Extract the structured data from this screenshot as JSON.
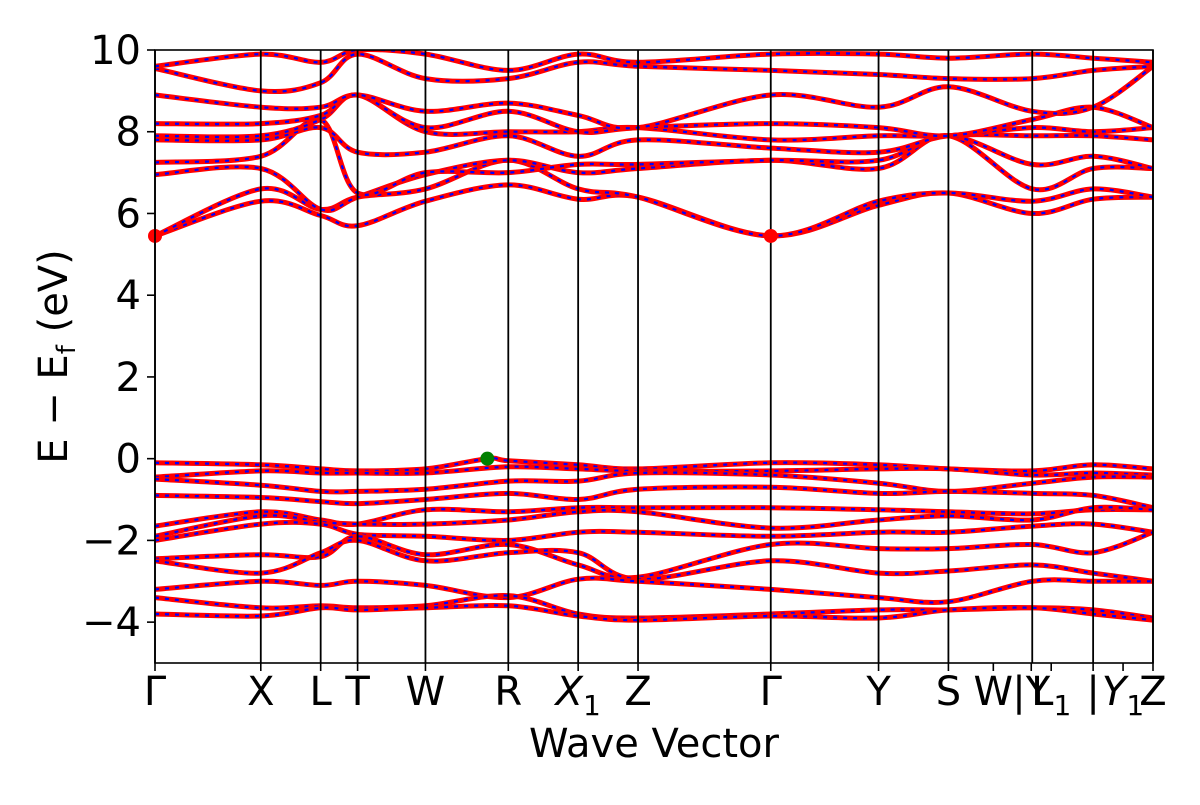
{
  "chart_data": {
    "type": "line",
    "title": "",
    "xlabel": "Wave Vector",
    "ylabel": "E − E_f (eV)",
    "ylabel_main": "E  −  E",
    "ylabel_sub": "f",
    "ylabel_tail": " (eV)",
    "ylim": [
      -5,
      10
    ],
    "yticks": [
      -4,
      -2,
      0,
      2,
      4,
      6,
      8,
      10
    ],
    "grid": false,
    "legend": "none",
    "xlim": [
      0,
      1
    ],
    "high_symmetry_points": [
      {
        "label": "Γ",
        "sub": "",
        "italic": false,
        "x": 0.0
      },
      {
        "label": "X",
        "sub": "",
        "italic": false,
        "x": 0.106
      },
      {
        "label": "L",
        "sub": "",
        "italic": false,
        "x": 0.166
      },
      {
        "label": "T",
        "sub": "",
        "italic": false,
        "x": 0.203
      },
      {
        "label": "W",
        "sub": "",
        "italic": false,
        "x": 0.271
      },
      {
        "label": "R",
        "sub": "",
        "italic": false,
        "x": 0.354
      },
      {
        "label": "X",
        "sub": "1",
        "italic": true,
        "x": 0.424
      },
      {
        "label": "Z",
        "sub": "",
        "italic": false,
        "x": 0.484
      },
      {
        "label": "Γ",
        "sub": "",
        "italic": false,
        "x": 0.617
      },
      {
        "label": "Y",
        "sub": "",
        "italic": false,
        "x": 0.725
      },
      {
        "label": "S",
        "sub": "",
        "italic": false,
        "x": 0.795
      },
      {
        "label": "W",
        "sub": "",
        "italic": false,
        "x": 0.84
      },
      {
        "label": "|Y",
        "sub": "",
        "italic": false,
        "x": 0.878
      },
      {
        "label": "L",
        "sub": "1",
        "italic": false,
        "x": 0.898
      },
      {
        "label": "|",
        "sub": "",
        "italic": false,
        "x": 0.94
      },
      {
        "label": "Y",
        "sub": "1",
        "italic": true,
        "x": 0.97
      },
      {
        "label": "Z",
        "sub": "",
        "italic": false,
        "x": 1.0
      }
    ],
    "band_lines_x": [
      0.0,
      0.106,
      0.166,
      0.203,
      0.271,
      0.354,
      0.424,
      0.484,
      0.617,
      0.725,
      0.795,
      0.879,
      0.94,
      1.0
    ],
    "series": [
      {
        "line_color": "#ff0000",
        "dash_color": "#0000ff"
      }
    ],
    "valence_band_max": {
      "x": 0.333,
      "y": 0.0,
      "color": "#008000"
    },
    "conduction_band_min": [
      {
        "x": 0.0,
        "y": 5.45,
        "color": "#ff0000"
      },
      {
        "x": 0.617,
        "y": 5.45,
        "color": "#ff0000"
      }
    ],
    "bands": [
      {
        "x": [
          0,
          0.106,
          0.166,
          0.203,
          0.271,
          0.354,
          0.424,
          0.484,
          0.617,
          0.725,
          0.795,
          0.879,
          0.94,
          1.0
        ],
        "y": [
          5.45,
          6.3,
          5.95,
          5.7,
          6.3,
          6.7,
          6.35,
          6.4,
          5.45,
          6.2,
          6.5,
          6.0,
          6.35,
          6.4
        ]
      },
      {
        "x": [
          0,
          0.106,
          0.166,
          0.203,
          0.271,
          0.354,
          0.424,
          0.484,
          0.617,
          0.725,
          0.795,
          0.879,
          0.94,
          1.0
        ],
        "y": [
          5.45,
          6.6,
          6.1,
          6.4,
          6.6,
          7.3,
          6.6,
          6.4,
          5.45,
          6.3,
          6.5,
          6.3,
          6.6,
          6.4
        ]
      },
      {
        "x": [
          0,
          0.106,
          0.166,
          0.203,
          0.271,
          0.354,
          0.424,
          0.484,
          0.617,
          0.725,
          0.795,
          0.879,
          0.94,
          1.0
        ],
        "y": [
          6.95,
          7.1,
          6.1,
          6.4,
          6.95,
          7.3,
          7.0,
          7.1,
          7.3,
          7.1,
          7.9,
          6.6,
          7.1,
          7.1
        ]
      },
      {
        "x": [
          0,
          0.106,
          0.166,
          0.203,
          0.271,
          0.354,
          0.424,
          0.484,
          0.617,
          0.725,
          0.795,
          0.879,
          0.94,
          1.0
        ],
        "y": [
          7.25,
          7.4,
          8.3,
          6.5,
          7.0,
          7.0,
          7.2,
          7.2,
          7.3,
          7.3,
          7.9,
          7.2,
          7.4,
          7.1
        ]
      },
      {
        "x": [
          0,
          0.106,
          0.166,
          0.203,
          0.271,
          0.354,
          0.424,
          0.484,
          0.617,
          0.725,
          0.795,
          0.879,
          0.94,
          1.0
        ],
        "y": [
          7.8,
          7.8,
          8.1,
          7.5,
          7.5,
          7.9,
          7.4,
          7.8,
          7.6,
          7.5,
          7.9,
          7.9,
          7.9,
          7.8
        ]
      },
      {
        "x": [
          0,
          0.106,
          0.166,
          0.203,
          0.271,
          0.354,
          0.424,
          0.484,
          0.617,
          0.725,
          0.795,
          0.879,
          0.94,
          1.0
        ],
        "y": [
          7.9,
          7.9,
          8.3,
          8.9,
          8.0,
          8.0,
          8.0,
          8.1,
          7.8,
          7.9,
          7.9,
          8.1,
          8.0,
          8.1
        ]
      },
      {
        "x": [
          0,
          0.106,
          0.166,
          0.203,
          0.271,
          0.354,
          0.424,
          0.484,
          0.617,
          0.725,
          0.795,
          0.879,
          0.94,
          1.0
        ],
        "y": [
          8.2,
          8.2,
          8.4,
          8.9,
          8.1,
          8.5,
          8.0,
          8.1,
          8.2,
          8.1,
          7.9,
          8.3,
          8.6,
          8.1
        ]
      },
      {
        "x": [
          0,
          0.106,
          0.166,
          0.203,
          0.271,
          0.354,
          0.424,
          0.484,
          0.617,
          0.725,
          0.795,
          0.879,
          0.94,
          1.0
        ],
        "y": [
          8.9,
          8.6,
          8.6,
          8.9,
          8.5,
          8.7,
          8.4,
          8.1,
          8.9,
          8.6,
          9.1,
          8.5,
          8.6,
          9.6
        ]
      },
      {
        "x": [
          0,
          0.106,
          0.166,
          0.203,
          0.271,
          0.354,
          0.424,
          0.484,
          0.617,
          0.725,
          0.795,
          0.879,
          0.94,
          1.0
        ],
        "y": [
          9.55,
          9.0,
          9.2,
          9.9,
          9.3,
          9.3,
          9.7,
          9.6,
          9.5,
          9.4,
          9.3,
          9.3,
          9.5,
          9.6
        ]
      },
      {
        "x": [
          0,
          0.106,
          0.166,
          0.203,
          0.271,
          0.354,
          0.424,
          0.484,
          0.617,
          0.725,
          0.795,
          0.879,
          0.94,
          1.0
        ],
        "y": [
          9.6,
          9.9,
          9.7,
          10.0,
          9.9,
          9.5,
          9.9,
          9.7,
          9.9,
          9.9,
          9.8,
          9.9,
          9.8,
          9.7
        ]
      },
      {
        "x": [
          0,
          0.106,
          0.166,
          0.203,
          0.271,
          0.333,
          0.354,
          0.424,
          0.484,
          0.617,
          0.725,
          0.795,
          0.879,
          0.94,
          1.0
        ],
        "y": [
          -0.1,
          -0.15,
          -0.25,
          -0.3,
          -0.25,
          0.0,
          -0.05,
          -0.15,
          -0.25,
          -0.1,
          -0.15,
          -0.25,
          -0.3,
          -0.15,
          -0.25
        ]
      },
      {
        "x": [
          0,
          0.106,
          0.166,
          0.203,
          0.271,
          0.354,
          0.424,
          0.484,
          0.617,
          0.725,
          0.795,
          0.879,
          0.94,
          1.0
        ],
        "y": [
          -0.45,
          -0.3,
          -0.35,
          -0.35,
          -0.35,
          -0.2,
          -0.25,
          -0.3,
          -0.3,
          -0.25,
          -0.25,
          -0.4,
          -0.35,
          -0.4
        ]
      },
      {
        "x": [
          0,
          0.106,
          0.166,
          0.203,
          0.271,
          0.354,
          0.424,
          0.484,
          0.617,
          0.725,
          0.795,
          0.879,
          0.94,
          1.0
        ],
        "y": [
          -0.5,
          -0.65,
          -0.8,
          -0.8,
          -0.75,
          -0.55,
          -0.55,
          -0.35,
          -0.4,
          -0.6,
          -0.8,
          -0.6,
          -0.45,
          -0.45
        ]
      },
      {
        "x": [
          0,
          0.106,
          0.166,
          0.203,
          0.271,
          0.354,
          0.424,
          0.484,
          0.617,
          0.725,
          0.795,
          0.879,
          0.94,
          1.0
        ],
        "y": [
          -0.9,
          -0.95,
          -1.05,
          -1.1,
          -1.0,
          -0.85,
          -1.0,
          -0.75,
          -0.7,
          -0.85,
          -0.8,
          -0.85,
          -0.9,
          -1.2
        ]
      },
      {
        "x": [
          0,
          0.106,
          0.166,
          0.203,
          0.271,
          0.354,
          0.424,
          0.484,
          0.617,
          0.725,
          0.795,
          0.879,
          0.94,
          1.0
        ],
        "y": [
          -1.65,
          -1.3,
          -1.5,
          -1.6,
          -1.25,
          -1.3,
          -1.2,
          -1.2,
          -1.2,
          -1.25,
          -1.3,
          -1.35,
          -1.25,
          -1.25
        ]
      },
      {
        "x": [
          0,
          0.106,
          0.166,
          0.203,
          0.271,
          0.354,
          0.424,
          0.484,
          0.617,
          0.725,
          0.795,
          0.879,
          0.94,
          1.0
        ],
        "y": [
          -1.9,
          -1.4,
          -1.55,
          -1.6,
          -1.6,
          -1.5,
          -1.3,
          -1.3,
          -1.7,
          -1.5,
          -1.4,
          -1.5,
          -1.2,
          -1.25
        ]
      },
      {
        "x": [
          0,
          0.106,
          0.166,
          0.203,
          0.271,
          0.354,
          0.424,
          0.484,
          0.617,
          0.725,
          0.795,
          0.879,
          0.94,
          1.0
        ],
        "y": [
          -2.0,
          -1.6,
          -1.6,
          -1.85,
          -1.9,
          -2.0,
          -1.8,
          -1.8,
          -1.9,
          -1.8,
          -1.8,
          -1.65,
          -1.6,
          -1.8
        ]
      },
      {
        "x": [
          0,
          0.106,
          0.166,
          0.203,
          0.271,
          0.354,
          0.424,
          0.484,
          0.617,
          0.725,
          0.795,
          0.879,
          0.94,
          1.0
        ],
        "y": [
          -2.45,
          -2.35,
          -2.4,
          -1.9,
          -2.35,
          -2.1,
          -2.6,
          -2.9,
          -2.1,
          -2.2,
          -2.2,
          -2.1,
          -2.3,
          -1.8
        ]
      },
      {
        "x": [
          0,
          0.106,
          0.166,
          0.203,
          0.271,
          0.354,
          0.424,
          0.484,
          0.617,
          0.725,
          0.795,
          0.879,
          0.94,
          1.0
        ],
        "y": [
          -2.5,
          -2.8,
          -2.3,
          -2.0,
          -2.5,
          -2.3,
          -2.3,
          -2.95,
          -2.5,
          -2.8,
          -2.75,
          -2.6,
          -2.8,
          -3.0
        ]
      },
      {
        "x": [
          0,
          0.106,
          0.166,
          0.203,
          0.271,
          0.354,
          0.424,
          0.484,
          0.617,
          0.725,
          0.795,
          0.879,
          0.94,
          1.0
        ],
        "y": [
          -3.2,
          -3.0,
          -3.1,
          -3.0,
          -3.1,
          -3.4,
          -2.95,
          -3.0,
          -3.2,
          -3.4,
          -3.5,
          -3.0,
          -3.0,
          -3.0
        ]
      },
      {
        "x": [
          0,
          0.106,
          0.166,
          0.203,
          0.271,
          0.354,
          0.424,
          0.484,
          0.617,
          0.725,
          0.795,
          0.879,
          0.94,
          1.0
        ],
        "y": [
          -3.4,
          -3.65,
          -3.6,
          -3.65,
          -3.6,
          -3.35,
          -3.8,
          -3.9,
          -3.8,
          -3.7,
          -3.7,
          -3.65,
          -3.7,
          -3.9
        ]
      },
      {
        "x": [
          0,
          0.106,
          0.166,
          0.203,
          0.271,
          0.354,
          0.424,
          0.484,
          0.617,
          0.725,
          0.795,
          0.879,
          0.94,
          1.0
        ],
        "y": [
          -3.8,
          -3.85,
          -3.65,
          -3.7,
          -3.65,
          -3.6,
          -3.85,
          -3.95,
          -3.85,
          -3.9,
          -3.7,
          -3.65,
          -3.8,
          -3.95
        ]
      }
    ]
  }
}
